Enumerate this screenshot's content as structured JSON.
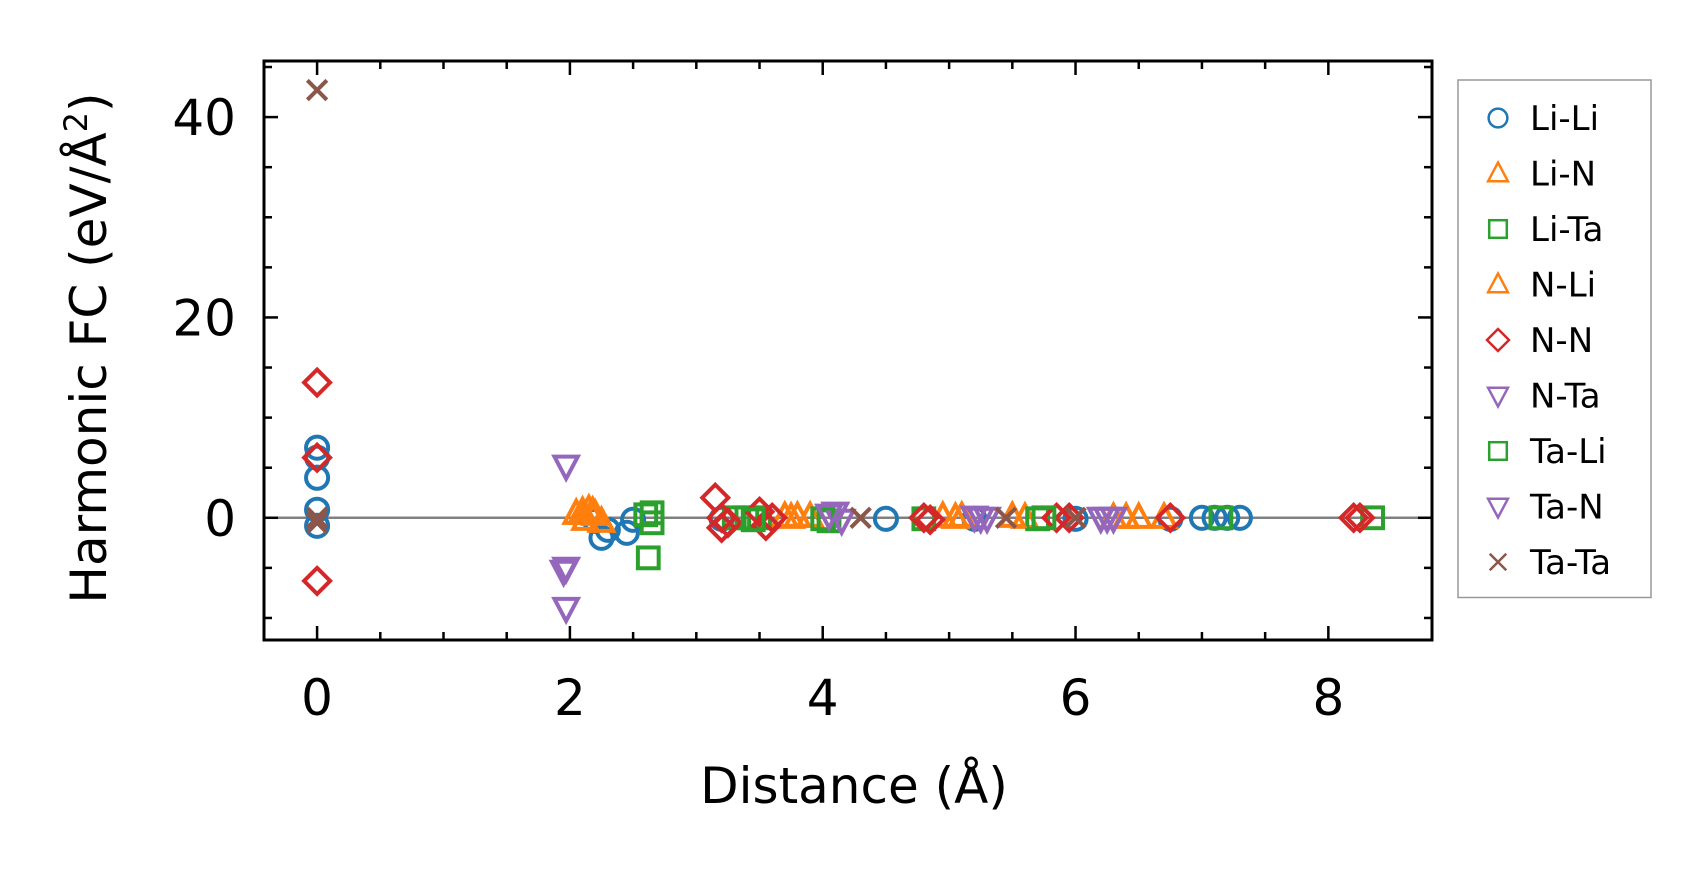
{
  "chart_data": {
    "type": "scatter",
    "title": "",
    "xlabel": "Distance (Å)",
    "ylabel_main": "Harmonic FC (eV/Å",
    "ylabel_sup": "2",
    "ylabel_end": ")",
    "xlim": [
      -0.42,
      8.82
    ],
    "ylim": [
      -12.2,
      45.6
    ],
    "xticks": [
      0,
      2,
      4,
      6,
      8
    ],
    "xtick_labels": [
      "0",
      "2",
      "4",
      "6",
      "8"
    ],
    "yticks": [
      0,
      20,
      40
    ],
    "ytick_labels": [
      "0",
      "20",
      "40"
    ],
    "reference_line_y": 0,
    "legend_position": "outside-right",
    "series": [
      {
        "name": "Li-Li",
        "color": "#1f77b4",
        "marker": "circle",
        "points": [
          [
            0,
            7.0
          ],
          [
            0,
            6.0
          ],
          [
            0,
            4.0
          ],
          [
            0,
            0.8
          ],
          [
            0,
            -0.8
          ],
          [
            2.2,
            -0.3
          ],
          [
            2.25,
            -2.0
          ],
          [
            2.3,
            -1.2
          ],
          [
            2.45,
            -1.5
          ],
          [
            2.5,
            -0.2
          ],
          [
            3.2,
            -0.1
          ],
          [
            4.5,
            -0.1
          ],
          [
            5.2,
            -0.1
          ],
          [
            6.0,
            -0.1
          ],
          [
            6.75,
            -0.1
          ],
          [
            7.0,
            0
          ],
          [
            7.1,
            0
          ],
          [
            7.2,
            0
          ],
          [
            7.3,
            0
          ]
        ]
      },
      {
        "name": "Li-N",
        "color": "#ff7f0e",
        "marker": "triangle-up",
        "points": [
          [
            2.05,
            0.4
          ],
          [
            2.1,
            0.6
          ],
          [
            2.12,
            -0.2
          ],
          [
            2.15,
            0.8
          ],
          [
            2.2,
            0.3
          ],
          [
            2.25,
            -0.4
          ],
          [
            3.7,
            0.1
          ],
          [
            3.9,
            0.1
          ],
          [
            4.95,
            0.1
          ],
          [
            5.1,
            0.1
          ],
          [
            5.6,
            0
          ],
          [
            6.3,
            0
          ],
          [
            6.5,
            0
          ],
          [
            6.7,
            0
          ]
        ]
      },
      {
        "name": "Li-Ta",
        "color": "#2ca02c",
        "marker": "square",
        "points": [
          [
            2.62,
            -4.0
          ],
          [
            2.65,
            0.5
          ],
          [
            2.65,
            -0.5
          ],
          [
            3.3,
            0
          ],
          [
            3.4,
            0
          ],
          [
            3.5,
            0
          ],
          [
            4.05,
            -0.3
          ],
          [
            4.8,
            -0.1
          ],
          [
            5.7,
            -0.1
          ],
          [
            7.15,
            0
          ],
          [
            8.35,
            0
          ]
        ]
      },
      {
        "name": "N-Li",
        "color": "#ff7f0e",
        "marker": "triangle-up",
        "points": [
          [
            2.1,
            0.4
          ],
          [
            2.18,
            0.6
          ],
          [
            3.75,
            0
          ],
          [
            3.8,
            0.1
          ],
          [
            5.05,
            0
          ],
          [
            5.5,
            0.1
          ],
          [
            6.4,
            0
          ]
        ]
      },
      {
        "name": "N-N",
        "color": "#d62728",
        "marker": "diamond",
        "points": [
          [
            0,
            13.5
          ],
          [
            0,
            6.0
          ],
          [
            0,
            -6.3
          ],
          [
            3.15,
            2.0
          ],
          [
            3.2,
            -1.0
          ],
          [
            3.2,
            0
          ],
          [
            3.25,
            -0.5
          ],
          [
            3.5,
            0.6
          ],
          [
            3.55,
            -0.8
          ],
          [
            3.6,
            0
          ],
          [
            4.8,
            0
          ],
          [
            4.85,
            -0.2
          ],
          [
            5.85,
            0
          ],
          [
            5.95,
            0
          ],
          [
            6.75,
            0
          ],
          [
            8.2,
            0
          ],
          [
            8.25,
            0
          ]
        ]
      },
      {
        "name": "N-Ta",
        "color": "#9467bd",
        "marker": "triangle-down",
        "points": [
          [
            1.97,
            5.2
          ],
          [
            1.97,
            -5.0
          ],
          [
            1.97,
            -9.0
          ],
          [
            4.1,
            0.5
          ],
          [
            4.15,
            -0.2
          ],
          [
            5.25,
            0
          ],
          [
            5.3,
            0
          ],
          [
            6.2,
            0
          ],
          [
            6.3,
            0
          ]
        ]
      },
      {
        "name": "Ta-Li",
        "color": "#2ca02c",
        "marker": "square",
        "points": [
          [
            2.6,
            0.3
          ],
          [
            3.45,
            -0.2
          ],
          [
            4.0,
            -0.1
          ],
          [
            5.75,
            0
          ]
        ]
      },
      {
        "name": "Ta-N",
        "color": "#9467bd",
        "marker": "triangle-down",
        "points": [
          [
            1.95,
            -5.3
          ],
          [
            4.05,
            0.3
          ],
          [
            5.2,
            0.1
          ],
          [
            6.25,
            0
          ]
        ]
      },
      {
        "name": "Ta-Ta",
        "color": "#8c564b",
        "marker": "x",
        "points": [
          [
            0,
            42.7
          ],
          [
            0,
            0
          ],
          [
            0,
            -0.5
          ],
          [
            4.3,
            0
          ],
          [
            5.45,
            0
          ],
          [
            6.0,
            0
          ]
        ]
      }
    ]
  }
}
